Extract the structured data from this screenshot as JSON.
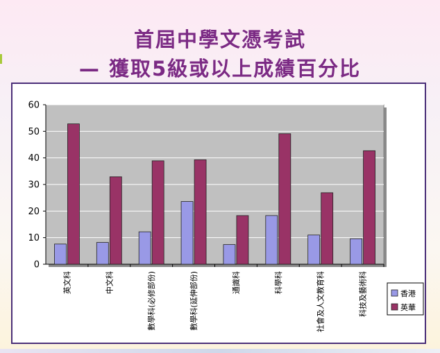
{
  "header": {
    "title_line1": "首屆中學文憑考試",
    "title_line2": "— 獲取5級或以上成績百分比"
  },
  "chart_data": {
    "type": "bar",
    "title": "",
    "xlabel": "",
    "ylabel": "",
    "ylim": [
      0,
      60
    ],
    "yticks": [
      0,
      10,
      20,
      30,
      40,
      50,
      60
    ],
    "grid": true,
    "legend_position": "bottom-right",
    "categories": [
      "英文科",
      "中文科",
      "數學科(必修部份)",
      "數學科(延伸部份)",
      "通識科",
      "科學科",
      "社會及人文教育科",
      "科技及藝術科"
    ],
    "series": [
      {
        "name": "香港",
        "color": "#9999e6",
        "values": [
          7.6,
          8.2,
          12.2,
          23.6,
          7.4,
          18.3,
          11.0,
          9.6
        ]
      },
      {
        "name": "英華",
        "color": "#993366",
        "values": [
          52.8,
          32.9,
          38.9,
          39.3,
          18.3,
          49.1,
          26.9,
          42.7
        ]
      }
    ],
    "colors": {
      "plot_bg": "#c0c0c0",
      "grid": "#ffffff",
      "frame": "#4a2e78"
    }
  }
}
